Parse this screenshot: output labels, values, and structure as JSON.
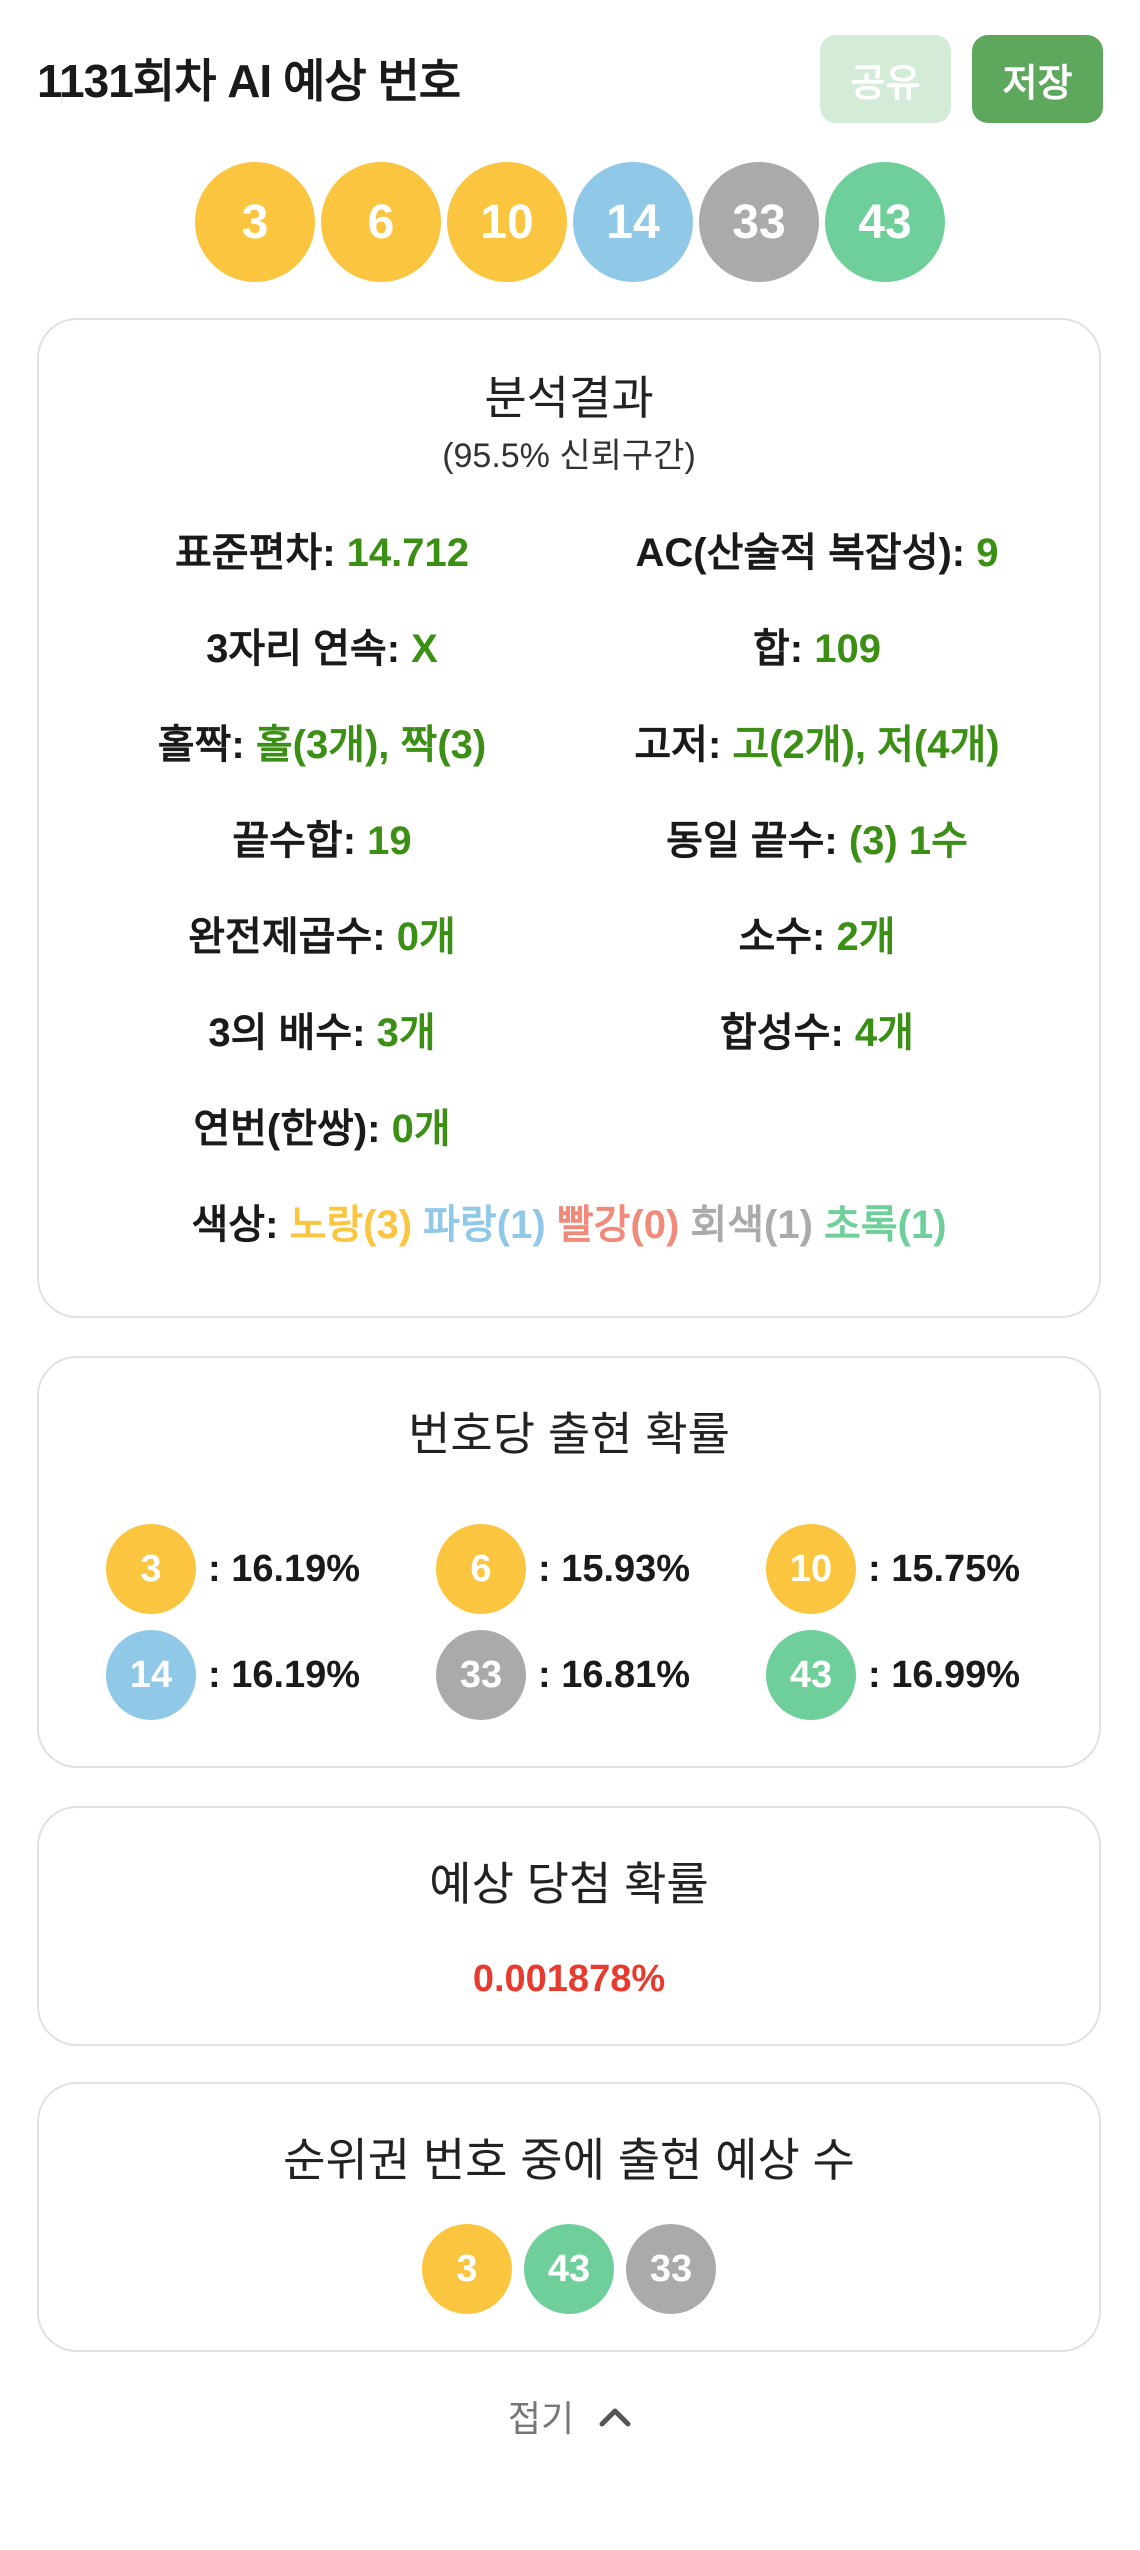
{
  "header": {
    "title": "1131회차 AI 예상 번호",
    "share_label": "공유",
    "save_label": "저장"
  },
  "main_numbers": [
    {
      "n": "3",
      "color": "yellow"
    },
    {
      "n": "6",
      "color": "yellow"
    },
    {
      "n": "10",
      "color": "yellow"
    },
    {
      "n": "14",
      "color": "blue"
    },
    {
      "n": "33",
      "color": "gray"
    },
    {
      "n": "43",
      "color": "green"
    }
  ],
  "colors": {
    "yellow": "#fbc53f",
    "blue": "#90c8e8",
    "gray": "#aaaaaa",
    "green": "#6fcf9b",
    "red": "#f08a7a",
    "value_green": "#3a8f14",
    "win_red": "#e63b2e",
    "save_button": "#5ea85e",
    "share_button": "#d3ebd7"
  },
  "analysis": {
    "title": "분석결과",
    "subtitle": "(95.5% 신뢰구간)",
    "std_label": "표준편차:",
    "std_value": "14.712",
    "ac_label": "AC(산술적 복잡성):",
    "ac_value": "9",
    "consec_label": "3자리 연속:",
    "consec_value": "X",
    "sum_label": "합:",
    "sum_value": "109",
    "oddeven_label": "홀짝:",
    "oddeven_value": "홀(3개), 짝(3)",
    "highlow_label": "고저:",
    "highlow_value": "고(2개), 저(4개)",
    "endsum_label": "끝수합:",
    "endsum_value": "19",
    "sameend_label": "동일 끝수:",
    "sameend_value": "(3) 1수",
    "square_label": "완전제곱수:",
    "square_value": "0개",
    "prime_label": "소수:",
    "prime_value": "2개",
    "mult3_label": "3의 배수:",
    "mult3_value": "3개",
    "composite_label": "합성수:",
    "composite_value": "4개",
    "pair_label": "연번(한쌍):",
    "pair_value": "0개",
    "color_label": "색상:",
    "color_yellow": "노랑(3)",
    "color_blue": "파랑(1)",
    "color_red": "빨강(0)",
    "color_gray": "회색(1)",
    "color_green": "초록(1)"
  },
  "probability": {
    "title": "번호당 출현 확률",
    "items": [
      {
        "n": "3",
        "text": ": 16.19%"
      },
      {
        "n": "6",
        "text": ": 15.93%"
      },
      {
        "n": "10",
        "text": ": 15.75%"
      },
      {
        "n": "14",
        "text": ": 16.19%"
      },
      {
        "n": "33",
        "text": ": 16.81%"
      },
      {
        "n": "43",
        "text": ": 16.99%"
      }
    ]
  },
  "winning": {
    "title": "예상 당첨 확률",
    "value": "0.001878%"
  },
  "ranked": {
    "title": "순위권 번호 중에 출현 예상 수",
    "numbers": [
      "3",
      "43",
      "33"
    ]
  },
  "fold": {
    "label": "접기",
    "icon": "chevron-up-icon"
  }
}
